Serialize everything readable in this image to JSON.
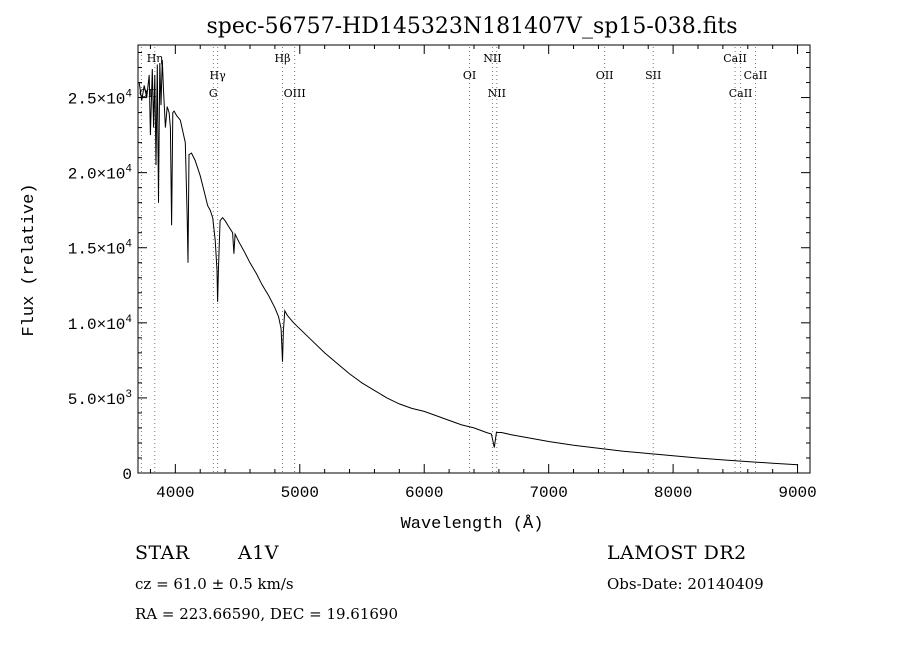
{
  "chart_data": {
    "type": "line",
    "title": "spec-56757-HD145323N181407V_sp15-038.fits",
    "xlabel": "Wavelength (Å)",
    "ylabel": "Flux (relative)",
    "xlim": [
      3700,
      9100
    ],
    "ylim": [
      0,
      28500
    ],
    "x_ticks": [
      4000,
      5000,
      6000,
      7000,
      8000,
      9000
    ],
    "y_ticks": [
      {
        "value": 0,
        "mantissa": "0",
        "exponent": ""
      },
      {
        "value": 5000,
        "mantissa": "5.0×10",
        "exponent": "3"
      },
      {
        "value": 10000,
        "mantissa": "1.0×10",
        "exponent": "4"
      },
      {
        "value": 15000,
        "mantissa": "1.5×10",
        "exponent": "4"
      },
      {
        "value": 20000,
        "mantissa": "2.0×10",
        "exponent": "4"
      },
      {
        "value": 25000,
        "mantissa": "2.5×10",
        "exponent": "4"
      }
    ],
    "grid": false,
    "series": [
      {
        "x": [
          3710,
          3730,
          3750,
          3770,
          3790,
          3800,
          3815,
          3825,
          3835,
          3845,
          3855,
          3865,
          3875,
          3885,
          3895,
          3905,
          3920,
          3935,
          3950,
          3960,
          3970,
          3980,
          3990,
          4010,
          4040,
          4080,
          4095,
          4102,
          4110,
          4130,
          4160,
          4200,
          4230,
          4260,
          4280,
          4300,
          4320,
          4335,
          4340,
          4347,
          4360,
          4380,
          4400,
          4430,
          4460,
          4471,
          4480,
          4510,
          4550,
          4600,
          4650,
          4700,
          4750,
          4800,
          4830,
          4850,
          4861,
          4868,
          4880,
          4900,
          4950,
          5000,
          5100,
          5200,
          5300,
          5400,
          5500,
          5600,
          5700,
          5800,
          5900,
          6000,
          6100,
          6200,
          6300,
          6400,
          6500,
          6540,
          6563,
          6580,
          6620,
          6700,
          6800,
          7000,
          7200,
          7400,
          7600,
          7800,
          8000,
          8200,
          8400,
          8600,
          8800,
          9000
        ],
        "y": [
          26000,
          24800,
          25800,
          25000,
          26500,
          22500,
          26900,
          23000,
          26500,
          20500,
          27200,
          18000,
          27300,
          24500,
          27500,
          25500,
          23000,
          24400,
          24000,
          23000,
          16500,
          24000,
          24100,
          23800,
          23500,
          22000,
          17000,
          14000,
          21200,
          21300,
          20800,
          19800,
          18800,
          17800,
          17500,
          17000,
          15500,
          13500,
          11400,
          13700,
          16800,
          17000,
          16800,
          16400,
          16000,
          14600,
          15900,
          15400,
          14800,
          14000,
          13300,
          12500,
          11800,
          11000,
          10400,
          9600,
          7400,
          9500,
          10800,
          10500,
          10000,
          9600,
          8800,
          8000,
          7300,
          6600,
          6000,
          5500,
          5000,
          4600,
          4300,
          4100,
          3800,
          3500,
          3200,
          3000,
          2700,
          2600,
          1700,
          2700,
          2700,
          2550,
          2400,
          2100,
          1850,
          1650,
          1450,
          1300,
          1150,
          1000,
          870,
          760,
          650,
          550
        ]
      }
    ],
    "line_markers": [
      {
        "label": "Hη",
        "wavelength": 3835,
        "row": "top"
      },
      {
        "label": "OII",
        "wavelength": 3727,
        "row": "mid-left"
      },
      {
        "label": "Hγ",
        "wavelength": 4340,
        "row": "upper"
      },
      {
        "label": "G",
        "wavelength": 4305,
        "row": "lower"
      },
      {
        "label": "Hβ",
        "wavelength": 4861,
        "row": "top"
      },
      {
        "label": "OIII",
        "wavelength": 4959,
        "row": "lower"
      },
      {
        "label": "OI",
        "wavelength": 6364,
        "row": "upper"
      },
      {
        "label": "NII",
        "wavelength": 6548,
        "row": "top"
      },
      {
        "label": "NII",
        "wavelength": 6583,
        "row": "lower"
      },
      {
        "label": "OII",
        "wavelength": 7450,
        "row": "upper"
      },
      {
        "label": "SII",
        "wavelength": 7840,
        "row": "upper"
      },
      {
        "label": "CaII",
        "wavelength": 8498,
        "row": "top"
      },
      {
        "label": "CaII",
        "wavelength": 8662,
        "row": "upper"
      },
      {
        "label": "CaII",
        "wavelength": 8542,
        "row": "lower"
      }
    ]
  },
  "info": {
    "object_type": "STAR",
    "spectral_class": "A1V",
    "survey": "LAMOST DR2",
    "cz": "cz = 61.0 ± 0.5 km/s",
    "obs_date": "Obs-Date: 20140409",
    "coords": "RA = 223.66590, DEC =  19.61690"
  }
}
